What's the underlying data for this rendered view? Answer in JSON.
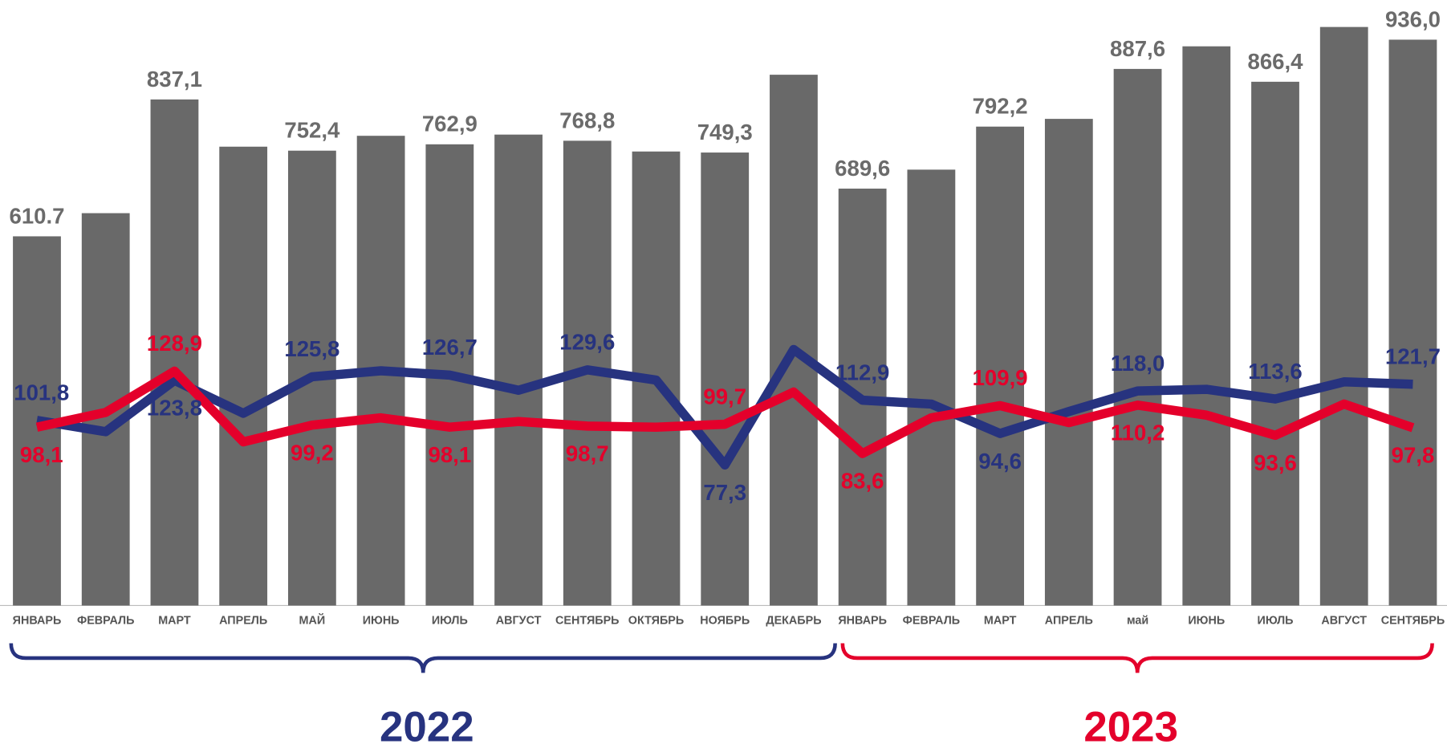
{
  "chart_data": {
    "type": "bar",
    "categories": [
      "ЯНВАРЬ",
      "ФЕВРАЛЬ",
      "МАРТ",
      "АПРЕЛЬ",
      "МАЙ",
      "ИЮНЬ",
      "ИЮЛЬ",
      "АВГУСТ",
      "СЕНТЯБРЬ",
      "ОКТЯБРЬ",
      "НОЯБРЬ",
      "ДЕКАБРЬ",
      "ЯНВАРЬ",
      "ФЕВРАЛЬ",
      "МАРТ",
      "АПРЕЛЬ",
      "май",
      "ИЮНЬ",
      "ИЮЛЬ",
      "АВГУСТ",
      "СЕНТЯБРЬ"
    ],
    "ylim": [
      0,
      1001.5
    ],
    "y2lim": [
      0,
      333
    ],
    "series": [
      {
        "type": "bar",
        "color": "#696969",
        "values": [
          610.7,
          649,
          837.1,
          759,
          752.4,
          777,
          762.9,
          779,
          768.8,
          751,
          749.3,
          878,
          689.6,
          721,
          792.2,
          805,
          887.6,
          925,
          866.4,
          957,
          936.0
        ],
        "value_labels": [
          "610.7",
          null,
          "837,1",
          null,
          "752,4",
          null,
          "762,9",
          null,
          "768,8",
          null,
          "749,3",
          null,
          "689,6",
          null,
          "792,2",
          null,
          "887,6",
          null,
          "866,4",
          null,
          "936,0"
        ]
      },
      {
        "type": "line",
        "axis": "y2",
        "color": "#27337f",
        "values": [
          101.8,
          95.6,
          123.8,
          105.7,
          125.8,
          129.1,
          126.7,
          118.4,
          129.6,
          124.0,
          77.3,
          140.8,
          112.9,
          110.8,
          94.6,
          106.7,
          118.0,
          118.9,
          113.6,
          123.0,
          121.7
        ],
        "value_labels": [
          "101,8",
          null,
          "123,8",
          null,
          "125,8",
          null,
          "126,7",
          null,
          "129,6",
          null,
          "77,3",
          null,
          "112,9",
          null,
          "94,6",
          null,
          "118,0",
          null,
          "113,6",
          null,
          "121,7"
        ]
      },
      {
        "type": "line",
        "axis": "y2",
        "color": "#e4002b",
        "values": [
          98.1,
          106.2,
          128.9,
          90.0,
          99.2,
          103.2,
          98.1,
          101.2,
          98.7,
          98.1,
          99.7,
          117.4,
          83.6,
          103.2,
          109.9,
          100.6,
          110.2,
          104.7,
          93.6,
          110.8,
          97.8
        ],
        "value_labels": [
          "98,1",
          null,
          "128,9",
          null,
          "99,2",
          null,
          "98,1",
          null,
          "98,7",
          null,
          "99,7",
          null,
          "83,6",
          null,
          "109,9",
          null,
          "110,2",
          null,
          "93,6",
          null,
          "97,8"
        ]
      }
    ],
    "groups": [
      {
        "label": "2022",
        "color": "#27337f"
      },
      {
        "label": "2023",
        "color": "#e4002b"
      }
    ]
  }
}
